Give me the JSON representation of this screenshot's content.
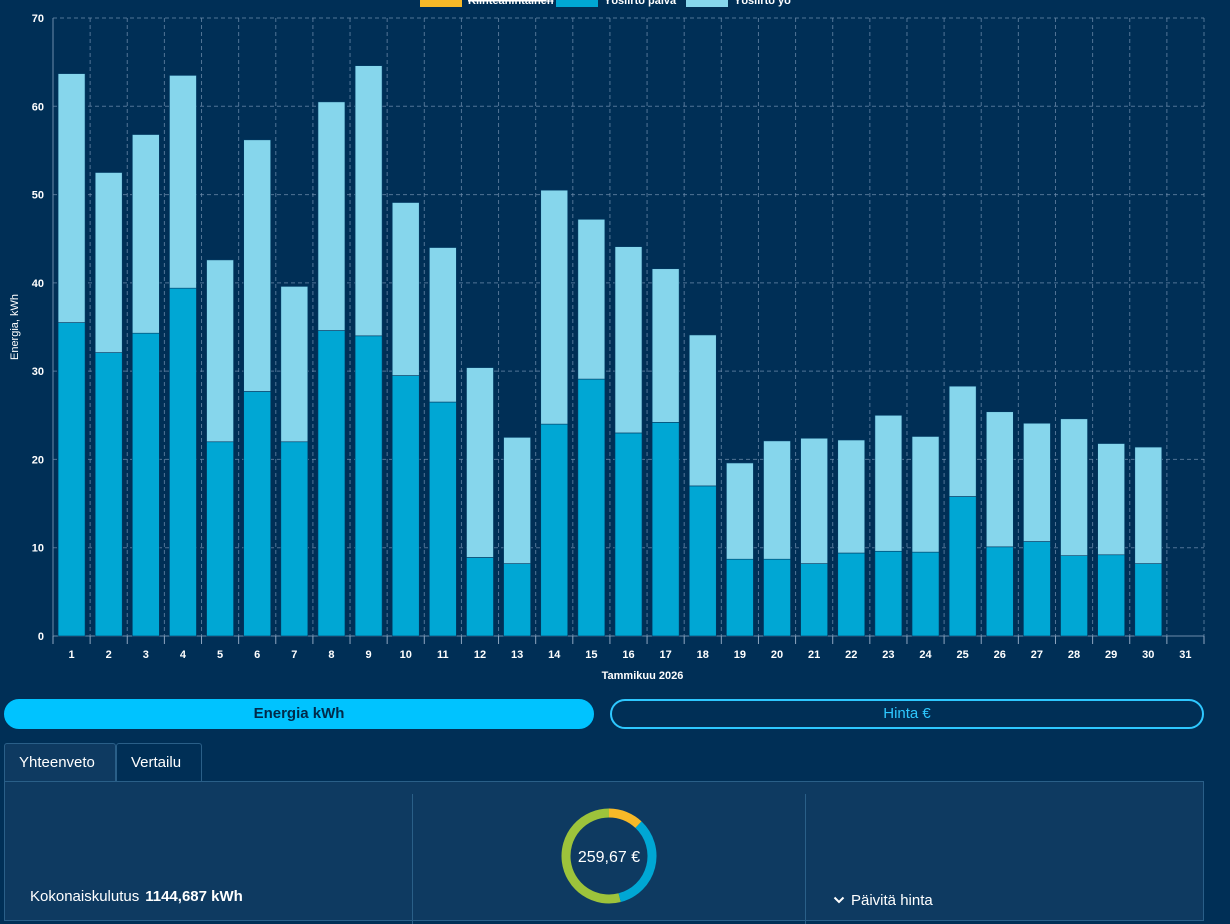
{
  "chart_data": {
    "type": "bar",
    "stacked": true,
    "ylabel": "Energia, kWh",
    "xlabel": "Tammikuu 2026",
    "ylim": [
      0,
      70
    ],
    "yticks": [
      0,
      10,
      20,
      30,
      40,
      50,
      60,
      70
    ],
    "categories": [
      "1",
      "2",
      "3",
      "4",
      "5",
      "6",
      "7",
      "8",
      "9",
      "10",
      "11",
      "12",
      "13",
      "14",
      "15",
      "16",
      "17",
      "18",
      "19",
      "20",
      "21",
      "22",
      "23",
      "24",
      "25",
      "26",
      "27",
      "28",
      "29",
      "30",
      "31"
    ],
    "legend_position": "top",
    "series": [
      {
        "name": "Kiinteähintainen",
        "color": "#f7b928",
        "hidden": true,
        "values": [
          0,
          0,
          0,
          0,
          0,
          0,
          0,
          0,
          0,
          0,
          0,
          0,
          0,
          0,
          0,
          0,
          0,
          0,
          0,
          0,
          0,
          0,
          0,
          0,
          0,
          0,
          0,
          0,
          0,
          0,
          0
        ]
      },
      {
        "name": "Yösiirto päivä",
        "color": "#00a7d4",
        "values": [
          35.5,
          32.1,
          34.3,
          39.4,
          22.0,
          27.7,
          22.0,
          34.6,
          34.0,
          29.5,
          26.5,
          8.9,
          8.2,
          24.0,
          29.1,
          23.0,
          24.2,
          17.0,
          8.7,
          8.7,
          8.2,
          9.4,
          9.6,
          9.5,
          15.8,
          10.1,
          10.7,
          9.1,
          9.2,
          8.2,
          null
        ]
      },
      {
        "name": "Yösiirto yö",
        "color": "#86d6ec",
        "values": [
          28.2,
          20.4,
          22.5,
          24.1,
          20.6,
          28.5,
          17.6,
          25.9,
          30.6,
          19.6,
          17.5,
          21.5,
          14.3,
          26.5,
          18.1,
          21.1,
          17.4,
          17.1,
          10.9,
          13.4,
          14.2,
          12.8,
          15.4,
          13.1,
          12.5,
          15.3,
          13.4,
          15.5,
          12.6,
          13.2,
          null
        ]
      }
    ]
  },
  "toggle": {
    "energy": "Energia kWh",
    "price": "Hinta €"
  },
  "tabs": {
    "summary": "Yhteenveto",
    "compare": "Vertailu"
  },
  "summary": {
    "total_label": "Kokonaiskulutus",
    "total_value": "1144,687 kWh",
    "cost": "259,67 €",
    "refresh_label": "Päivitä hinta",
    "donut": [
      {
        "name": "Kiinteähintainen",
        "color": "#f7b928",
        "fraction": 0.12
      },
      {
        "name": "Yösiirto päivä",
        "color": "#00a7d4",
        "fraction": 0.34
      },
      {
        "name": "Yösiirto yö",
        "color": "#9dc33b",
        "fraction": 0.54
      }
    ]
  }
}
